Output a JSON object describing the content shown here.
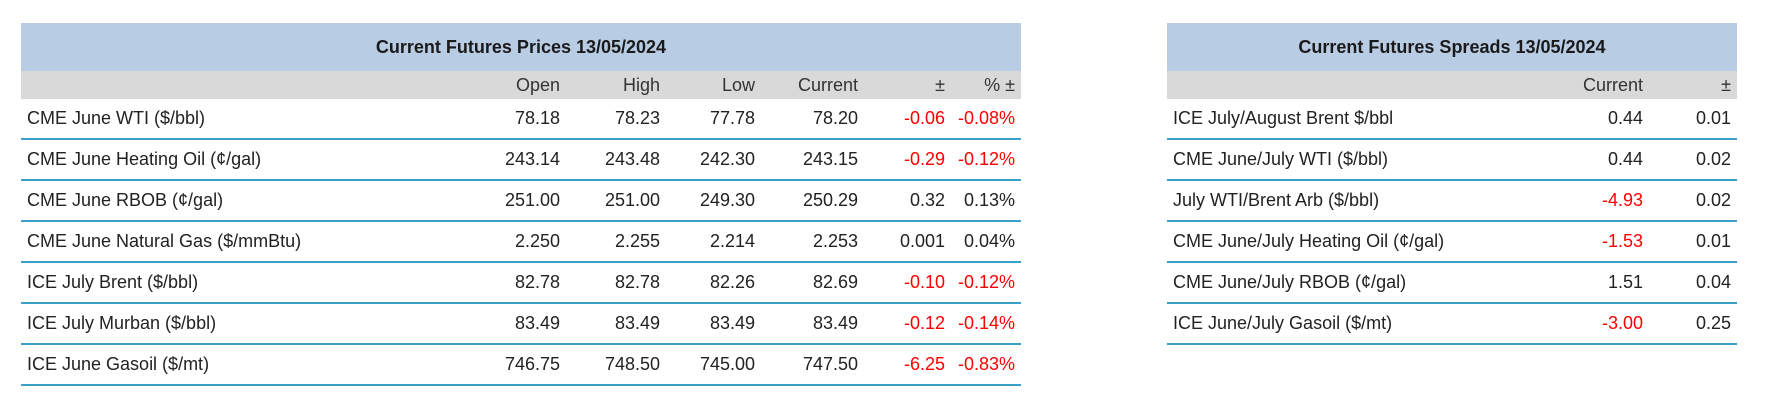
{
  "tables": [
    {
      "title": "Current Futures Prices 13/05/2024",
      "columns": [
        "Open",
        "High",
        "Low",
        "Current",
        "±",
        "% ±"
      ],
      "rows": [
        [
          "CME June WTI ($/bbl)",
          "78.18",
          "78.23",
          "77.78",
          "78.20",
          "-0.06",
          "-0.08%"
        ],
        [
          "CME June Heating Oil (¢/gal)",
          "243.14",
          "243.48",
          "242.30",
          "243.15",
          "-0.29",
          "-0.12%"
        ],
        [
          "CME June RBOB (¢/gal)",
          "251.00",
          "251.00",
          "249.30",
          "250.29",
          "0.32",
          "0.13%"
        ],
        [
          "CME June Natural Gas ($/mmBtu)",
          "2.250",
          "2.255",
          "2.214",
          "2.253",
          "0.001",
          "0.04%"
        ],
        [
          "ICE July Brent ($/bbl)",
          "82.78",
          "82.78",
          "82.26",
          "82.69",
          "-0.10",
          "-0.12%"
        ],
        [
          "ICE July Murban ($/bbl)",
          "83.49",
          "83.49",
          "83.49",
          "83.49",
          "-0.12",
          "-0.14%"
        ],
        [
          "ICE June Gasoil ($/mt)",
          "746.75",
          "748.50",
          "745.00",
          "747.50",
          "-6.25",
          "-0.83%"
        ]
      ]
    },
    {
      "title": "Current Futures Spreads 13/05/2024",
      "columns": [
        "Current",
        "±"
      ],
      "rows": [
        [
          "ICE July/August Brent $/bbl",
          "0.44",
          "0.01"
        ],
        [
          "CME June/July WTI ($/bbl)",
          "0.44",
          "0.02"
        ],
        [
          "July WTI/Brent Arb ($/bbl)",
          "-4.93",
          "0.02"
        ],
        [
          "CME June/July Heating Oil (¢/gal)",
          "-1.53",
          "0.01"
        ],
        [
          "CME June/July RBOB (¢/gal)",
          "1.51",
          "0.04"
        ],
        [
          "ICE June/July Gasoil ($/mt)",
          "-3.00",
          "0.25"
        ]
      ]
    }
  ]
}
